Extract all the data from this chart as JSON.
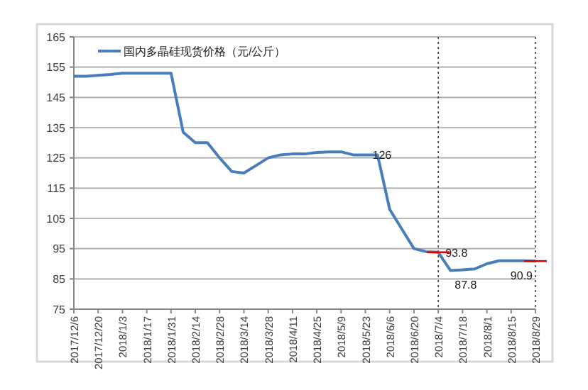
{
  "chart_data": {
    "type": "line",
    "categories": [
      "2017/12/6",
      null,
      "2017/12/20",
      null,
      "2018/1/3",
      null,
      "2018/1/17",
      null,
      "2018/1/31",
      null,
      "2018/2/14",
      null,
      "2018/2/28",
      null,
      "2018/3/14",
      null,
      "2018/3/28",
      null,
      "2018/4/11",
      null,
      "2018/4/25",
      null,
      "2018/5/9",
      null,
      "2018/5/23",
      null,
      "2018/6/6",
      null,
      "2018/6/20",
      null,
      "2018/7/4",
      null,
      "2018/7/18",
      null,
      "2018/8/1",
      null,
      "2018/8/15",
      null,
      "2018/8/29"
    ],
    "series": [
      {
        "name": "国内多晶硅现货价格（元/公斤）",
        "color": "#4a7ebb",
        "values": [
          152,
          152,
          152.3,
          152.6,
          153,
          153,
          153,
          153,
          153,
          133.5,
          130,
          130,
          125,
          120.5,
          120,
          122.5,
          125,
          126,
          126.3,
          126.3,
          126.8,
          127,
          127,
          126,
          126,
          126,
          108,
          101.5,
          95,
          94,
          93.8,
          87.8,
          88,
          88.3,
          90,
          91,
          91,
          91,
          90.9
        ]
      }
    ],
    "ylim": [
      75,
      165
    ],
    "yticks": [
      75,
      85,
      95,
      105,
      115,
      125,
      135,
      145,
      155,
      165
    ],
    "grid": "y",
    "legend": "top left",
    "marker": "none",
    "line_style": "solid",
    "annotations": [
      {
        "text": "126",
        "x": "2018/5/23",
        "y": 126
      },
      {
        "text": "93.8",
        "x": "2018/7/4",
        "y": 93.8
      },
      {
        "text": "87.8",
        "y": 87.8
      },
      {
        "text": "90.9",
        "x": "2018/8/29",
        "y": 90.9
      }
    ],
    "ref_lines": [
      {
        "axis": "x",
        "value": "2018/7/4",
        "color": "#404040",
        "line_style": "dotted"
      },
      {
        "axis": "x",
        "value": "2018/8/29",
        "color": "#404040",
        "line_style": "dotted"
      }
    ]
  }
}
